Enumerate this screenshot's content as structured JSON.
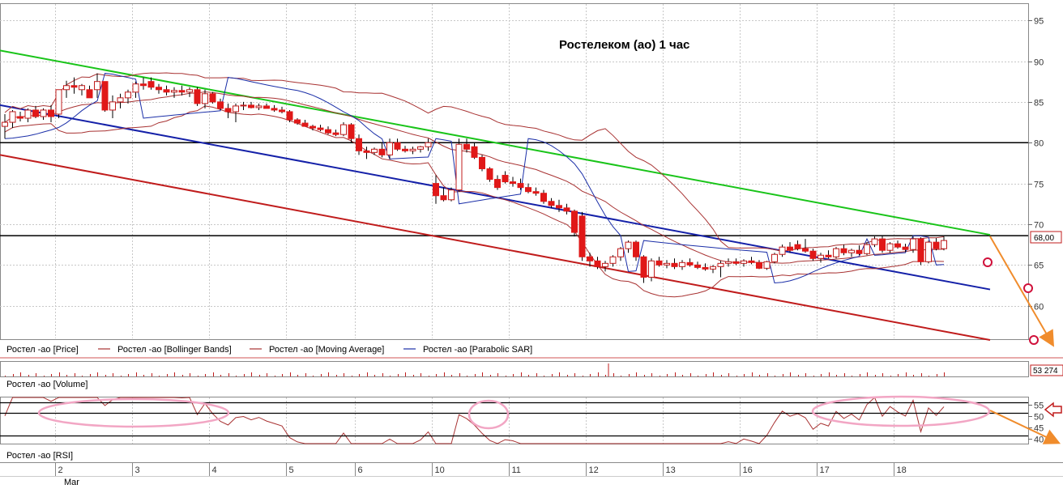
{
  "chart_data": {
    "type": "candlestick",
    "title": "Ростелеком (ао)   1 час",
    "price_axis": {
      "ylim": [
        56,
        97
      ],
      "ticks": [
        60,
        65,
        70,
        75,
        80,
        85,
        90,
        95
      ]
    },
    "last_price_label": "68,00",
    "volume_label": "53 274",
    "rsi_axis": {
      "ylim": [
        38,
        58
      ],
      "ticks": [
        40,
        45,
        50,
        55
      ]
    },
    "x_ticks": [
      "2",
      "3",
      "4",
      "5",
      "6",
      "10",
      "11",
      "12",
      "13",
      "16",
      "17",
      "18"
    ],
    "month_label": "Mar",
    "legend": [
      {
        "name": "Ростел -ао [Price]",
        "color": "#000000"
      },
      {
        "name": "Ростел -ао [Bollinger Bands]",
        "color": "#a83232"
      },
      {
        "name": "Ростел -ао [Moving Average]",
        "color": "#a83232"
      },
      {
        "name": "Ростел -ао [Parabolic SAR]",
        "color": "#1b2fa8"
      }
    ],
    "panel_labels": {
      "volume": "Ростел -ао [Volume]",
      "rsi": "Ростел -ао [RSI]"
    },
    "horizontal_levels": [
      80,
      68.6
    ],
    "rsi_levels": [
      56,
      51.5,
      41.5
    ],
    "trendlines": [
      {
        "name": "resistance",
        "color": "#19c419",
        "from": [
          0,
          91.3
        ],
        "to": [
          128,
          68.7
        ]
      },
      {
        "name": "channel-mid",
        "color": "#1420a8",
        "from": [
          0,
          84.6
        ],
        "to": [
          128,
          62
        ]
      },
      {
        "name": "channel-low",
        "color": "#c01c1c",
        "from": [
          0,
          78.5
        ],
        "to": [
          128,
          55.8
        ]
      }
    ],
    "candles": [
      [
        82,
        83.5,
        80.5,
        82.5
      ],
      [
        82.5,
        84,
        81.8,
        83.8
      ],
      [
        83.2,
        83.8,
        82.6,
        83
      ],
      [
        83,
        84.2,
        82.5,
        84
      ],
      [
        84,
        84.5,
        83,
        83.2
      ],
      [
        83.2,
        84.2,
        82.8,
        84
      ],
      [
        84,
        84.6,
        82.5,
        83.2
      ],
      [
        83.5,
        86.5,
        83,
        86.5
      ],
      [
        86.5,
        87.6,
        85.5,
        87
      ],
      [
        87,
        88,
        86,
        86.8
      ],
      [
        86.5,
        87.2,
        85.8,
        87
      ],
      [
        86.5,
        87,
        85.5,
        85.5
      ],
      [
        86.5,
        88.5,
        85.5,
        87.5
      ],
      [
        87.5,
        87.5,
        83.8,
        84
      ],
      [
        84,
        85.8,
        83,
        85
      ],
      [
        85,
        86,
        84.2,
        85.5
      ],
      [
        85.5,
        86.5,
        84.8,
        86.2
      ],
      [
        86.2,
        87.5,
        85.5,
        87.2
      ],
      [
        87.2,
        88,
        86.5,
        87
      ],
      [
        87.5,
        88,
        86.5,
        86.8
      ],
      [
        86.8,
        87.2,
        86,
        86.5
      ],
      [
        86.5,
        87,
        85.8,
        86.2
      ],
      [
        86.2,
        86.8,
        85.5,
        86.4
      ],
      [
        86.4,
        87,
        85.8,
        86.2
      ],
      [
        86.2,
        86.8,
        85.6,
        86.5
      ],
      [
        86.5,
        86.8,
        84.5,
        84.8
      ],
      [
        84.8,
        86.5,
        84.2,
        86
      ],
      [
        86,
        86.2,
        84.8,
        85
      ],
      [
        85,
        85.4,
        84,
        84.2
      ],
      [
        84.2,
        84.8,
        83,
        83.8
      ],
      [
        83.8,
        84.8,
        82.5,
        84.5
      ],
      [
        84.5,
        85,
        84,
        84.6
      ],
      [
        84.6,
        85,
        84.2,
        84.3
      ],
      [
        84.3,
        84.8,
        84,
        84.5
      ],
      [
        84.5,
        84.8,
        84.2,
        84.2
      ],
      [
        84.2,
        84.6,
        83.8,
        84
      ],
      [
        84,
        84.4,
        83.6,
        83.8
      ],
      [
        83.8,
        84,
        82.5,
        82.8
      ],
      [
        82.8,
        83,
        82.2,
        82.4
      ],
      [
        82.4,
        82.8,
        82,
        82
      ],
      [
        82,
        82.2,
        81.5,
        81.8
      ],
      [
        81.8,
        82.2,
        81.4,
        81.6
      ],
      [
        81.6,
        82,
        81,
        81.2
      ],
      [
        81.2,
        81.6,
        80.8,
        81
      ],
      [
        81,
        82.5,
        80.8,
        82.2
      ],
      [
        82.2,
        82.4,
        80,
        80.5
      ],
      [
        80.5,
        81,
        78.5,
        79
      ],
      [
        79,
        79.5,
        78,
        78.8
      ],
      [
        78.8,
        79.4,
        78.5,
        79.2
      ],
      [
        79.2,
        80,
        78.2,
        78.5
      ],
      [
        78.5,
        80.5,
        78,
        80
      ],
      [
        80,
        80.5,
        79,
        79.2
      ],
      [
        79.2,
        79.6,
        78.8,
        79
      ],
      [
        79,
        79.5,
        78.6,
        79.2
      ],
      [
        79.2,
        79.6,
        78.8,
        79.5
      ],
      [
        79.5,
        80.5,
        79,
        80
      ],
      [
        75,
        76,
        72.5,
        73.5
      ],
      [
        73.5,
        74.5,
        72.8,
        73
      ],
      [
        73,
        74.5,
        72.8,
        74.2
      ],
      [
        74.2,
        80.5,
        74,
        79.8
      ],
      [
        79.8,
        80.5,
        78.8,
        79.2
      ],
      [
        79.5,
        80,
        78,
        78.2
      ],
      [
        78.2,
        78.5,
        76.5,
        76.8
      ],
      [
        76.8,
        77,
        75.2,
        75.5
      ],
      [
        75.5,
        76,
        74.2,
        74.5
      ],
      [
        76,
        76.5,
        75,
        75.2
      ],
      [
        75.2,
        75.8,
        74.6,
        75
      ],
      [
        75,
        75.6,
        74.2,
        74.5
      ],
      [
        74.5,
        75,
        73.8,
        74
      ],
      [
        74,
        74.5,
        73.5,
        73.8
      ],
      [
        73.8,
        74.2,
        72.5,
        72.8
      ],
      [
        72.8,
        73.2,
        72,
        72.3
      ],
      [
        72.3,
        73,
        71.5,
        72
      ],
      [
        72,
        72.5,
        71.2,
        71.6
      ],
      [
        71.6,
        71.8,
        68.5,
        69
      ],
      [
        71,
        71.5,
        65.5,
        66
      ],
      [
        66,
        66.5,
        64.8,
        65.5
      ],
      [
        65.5,
        66,
        64.5,
        64.8
      ],
      [
        64.8,
        65.5,
        64.2,
        65.2
      ],
      [
        65.2,
        66.2,
        64.8,
        66
      ],
      [
        66,
        67.2,
        65.5,
        67
      ],
      [
        67,
        68,
        66.5,
        67.8
      ],
      [
        67.8,
        68,
        65.5,
        66
      ],
      [
        66,
        66.2,
        62.8,
        63.5
      ],
      [
        63.5,
        65.8,
        63,
        65.5
      ],
      [
        65.5,
        66,
        64.8,
        65
      ],
      [
        65,
        65.6,
        64.6,
        65.2
      ],
      [
        65.2,
        65.8,
        64.5,
        64.8
      ],
      [
        64.8,
        65.6,
        64.4,
        65.3
      ],
      [
        65.3,
        65.8,
        64.8,
        65
      ],
      [
        65,
        65.4,
        64.5,
        64.7
      ],
      [
        64.7,
        65.2,
        64.3,
        64.5
      ],
      [
        64.5,
        65,
        64,
        64.8
      ],
      [
        64.8,
        65.5,
        63.5,
        65.2
      ],
      [
        65.2,
        65.8,
        64.8,
        65.4
      ],
      [
        65.4,
        65.8,
        65,
        65.2
      ],
      [
        65.2,
        65.7,
        64.8,
        65.5
      ],
      [
        65.5,
        66,
        65.1,
        65.3
      ],
      [
        65.3,
        65.6,
        64.5,
        64.6
      ],
      [
        64.6,
        65.5,
        64.4,
        65.4
      ],
      [
        65.4,
        66.5,
        65.2,
        66.3
      ],
      [
        66.3,
        67.5,
        66,
        67.2
      ],
      [
        67.2,
        67.8,
        66.5,
        66.8
      ],
      [
        67.5,
        68,
        66.8,
        67
      ],
      [
        67,
        68.2,
        66.5,
        66.7
      ],
      [
        66.7,
        67,
        65.5,
        65.8
      ],
      [
        65.8,
        66.5,
        65.3,
        66.2
      ],
      [
        66.2,
        66.8,
        65.8,
        66
      ],
      [
        66,
        67.2,
        65.8,
        67
      ],
      [
        67,
        67.5,
        66.2,
        66.5
      ],
      [
        66.5,
        67,
        66,
        66.8
      ],
      [
        66.8,
        67.4,
        66.2,
        66.4
      ],
      [
        66.4,
        67.8,
        66.2,
        67.5
      ],
      [
        67.5,
        68.5,
        67.2,
        68.2
      ],
      [
        68.2,
        68.6,
        66.5,
        66.8
      ],
      [
        66.8,
        67.8,
        66.5,
        67.6
      ],
      [
        67.6,
        68,
        67,
        67.2
      ],
      [
        67.2,
        67.6,
        66.6,
        66.9
      ],
      [
        66.9,
        68.5,
        66.5,
        68.2
      ],
      [
        68.2,
        68.4,
        65,
        65.4
      ],
      [
        65.4,
        68,
        65.2,
        67.8
      ],
      [
        67.8,
        68.3,
        66.8,
        67
      ],
      [
        67,
        68.5,
        66.8,
        68
      ]
    ]
  }
}
